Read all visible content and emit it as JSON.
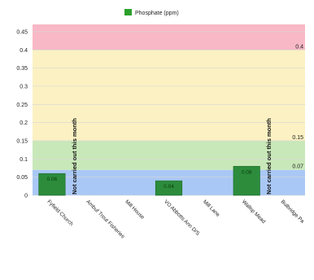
{
  "chart_data": {
    "type": "bar",
    "legend": {
      "position": "top",
      "entries": [
        {
          "name": "Phosphate (ppm)",
          "color": "#2ca02c"
        }
      ]
    },
    "categories": [
      "Fyfield Church",
      "Ambuf Trout Fisheries",
      "Mill House",
      "VO Abbotts Ann D/S",
      "Mill Lane",
      "Wallop Mead",
      "Bulbridge Pa"
    ],
    "series": [
      {
        "name": "Phosphate (ppm)",
        "values": [
          0.06,
          null,
          null,
          0.04,
          null,
          0.08,
          null
        ]
      }
    ],
    "data_labels": [
      "0.06",
      "",
      "",
      "0.04",
      "",
      "0.08",
      ""
    ],
    "annotations": [
      {
        "category_index": 1,
        "text": "Not carried out this month"
      },
      {
        "category_index": 6,
        "text": "Not carried out this month"
      }
    ],
    "thresholds": [
      {
        "value": 0.4,
        "label": "0.4"
      },
      {
        "value": 0.15,
        "label": "0.15"
      },
      {
        "value": 0.07,
        "label": "0.07"
      }
    ],
    "bands": [
      {
        "from": 0,
        "to": 0.07,
        "color": "#aac8f5"
      },
      {
        "from": 0.07,
        "to": 0.15,
        "color": "#c9e8b9"
      },
      {
        "from": 0.15,
        "to": 0.4,
        "color": "#fbf1c2"
      },
      {
        "from": 0.4,
        "to": 0.47,
        "color": "#f8b8c6"
      }
    ],
    "y_ticks": [
      "0",
      "0.05",
      "0.1",
      "0.15",
      "0.2",
      "0.25",
      "0.3",
      "0.35",
      "0.4",
      "0.45"
    ],
    "ylim": [
      0,
      0.47
    ],
    "grid": true,
    "colors": {
      "bar": "#2c8c3c",
      "bar_edge": "#1d6b2a",
      "grid": "#d7d7d7"
    }
  }
}
